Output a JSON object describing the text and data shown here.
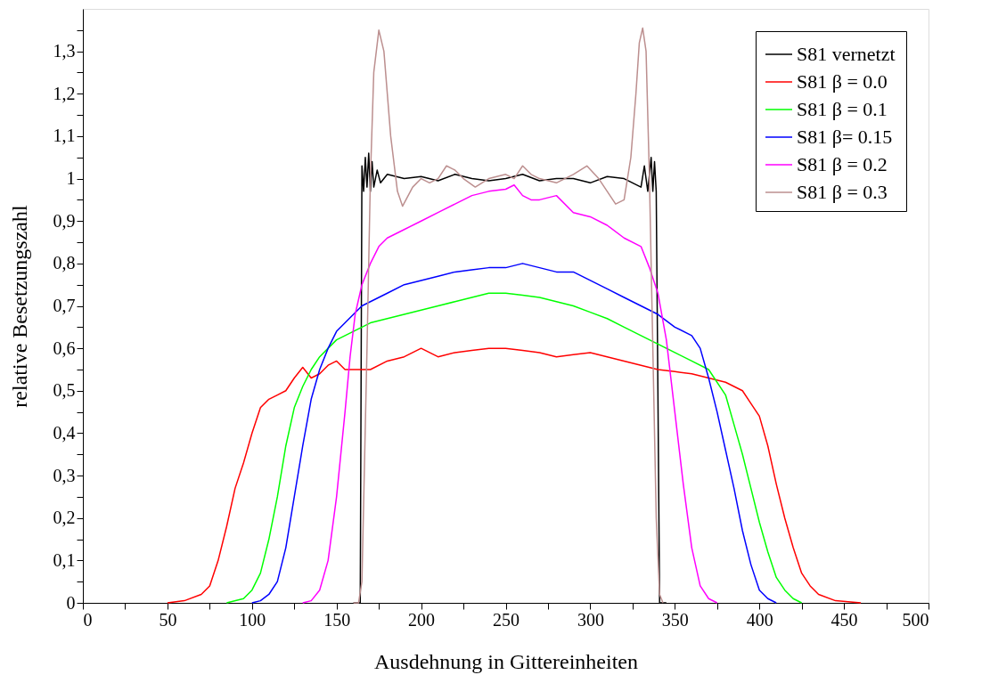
{
  "chart_data": {
    "type": "line",
    "xlabel": "Ausdehnung in Gittereinheiten",
    "ylabel": "relative Besetzungszahl",
    "xlim": [
      0,
      500
    ],
    "ylim": [
      0,
      1.4
    ],
    "xticks": [
      0,
      {
        "value": 25,
        "label": null
      },
      50,
      {
        "value": 75,
        "label": null
      },
      100,
      {
        "value": 125,
        "label": null
      },
      150,
      {
        "value": 175,
        "label": null
      },
      200,
      {
        "value": 225,
        "label": null
      },
      250,
      {
        "value": 275,
        "label": null
      },
      300,
      {
        "value": 325,
        "label": null
      },
      350,
      {
        "value": 375,
        "label": null
      },
      400,
      {
        "value": 425,
        "label": null
      },
      450,
      {
        "value": 475,
        "label": null
      },
      500
    ],
    "yticks": [
      0,
      {
        "value": 0.05,
        "label": null
      },
      {
        "value": 0.1,
        "label": "0,1"
      },
      {
        "value": 0.15,
        "label": null
      },
      {
        "value": 0.2,
        "label": "0,2"
      },
      {
        "value": 0.25,
        "label": null
      },
      {
        "value": 0.3,
        "label": "0,3"
      },
      {
        "value": 0.35,
        "label": null
      },
      {
        "value": 0.4,
        "label": "0,4"
      },
      {
        "value": 0.45,
        "label": null
      },
      {
        "value": 0.5,
        "label": "0,5"
      },
      {
        "value": 0.55,
        "label": null
      },
      {
        "value": 0.6,
        "label": "0,6"
      },
      {
        "value": 0.65,
        "label": null
      },
      {
        "value": 0.7,
        "label": "0,7"
      },
      {
        "value": 0.75,
        "label": null
      },
      {
        "value": 0.8,
        "label": "0,8"
      },
      {
        "value": 0.85,
        "label": null
      },
      {
        "value": 0.9,
        "label": "0,9"
      },
      {
        "value": 0.95,
        "label": null
      },
      1,
      {
        "value": 1.05,
        "label": null
      },
      {
        "value": 1.1,
        "label": "1,1"
      },
      {
        "value": 1.15,
        "label": null
      },
      {
        "value": 1.2,
        "label": "1,2"
      },
      {
        "value": 1.25,
        "label": null
      },
      {
        "value": 1.3,
        "label": "1,3"
      },
      {
        "value": 1.35,
        "label": null
      }
    ],
    "grid": false,
    "legend": "top right",
    "marker": "none",
    "line_style": "solid",
    "series": [
      {
        "name": "S81 vernetzt",
        "color": "#000000",
        "type": "line",
        "x": [
          160,
          164,
          165,
          166,
          167,
          168,
          169,
          170,
          171,
          172,
          174,
          176,
          180,
          190,
          200,
          210,
          220,
          230,
          240,
          250,
          260,
          270,
          280,
          290,
          300,
          310,
          320,
          330,
          332,
          334,
          336,
          337,
          338,
          339,
          340,
          341,
          345
        ],
        "values": [
          0,
          0,
          1.03,
          0.97,
          1.05,
          0.98,
          1.06,
          0.97,
          1.04,
          0.98,
          1.02,
          0.99,
          1.01,
          1.0,
          1.005,
          0.995,
          1.01,
          1.0,
          0.995,
          1.0,
          1.01,
          0.995,
          1.0,
          1.0,
          0.99,
          1.005,
          1.0,
          0.98,
          1.03,
          0.97,
          1.05,
          0.97,
          1.04,
          0.97,
          0.5,
          0,
          0
        ]
      },
      {
        "name": "S81  β = 0.0",
        "color": "#ff0000",
        "type": "line",
        "x": [
          50,
          60,
          70,
          75,
          80,
          85,
          90,
          95,
          100,
          105,
          110,
          115,
          120,
          125,
          130,
          135,
          140,
          145,
          150,
          155,
          160,
          170,
          180,
          190,
          200,
          210,
          220,
          230,
          240,
          250,
          260,
          270,
          280,
          290,
          300,
          310,
          320,
          330,
          340,
          350,
          360,
          370,
          380,
          390,
          395,
          400,
          405,
          410,
          415,
          420,
          425,
          430,
          435,
          445,
          460
        ],
        "values": [
          0,
          0.005,
          0.02,
          0.04,
          0.1,
          0.18,
          0.27,
          0.33,
          0.4,
          0.46,
          0.48,
          0.49,
          0.5,
          0.53,
          0.555,
          0.53,
          0.54,
          0.56,
          0.57,
          0.55,
          0.55,
          0.55,
          0.57,
          0.58,
          0.6,
          0.58,
          0.59,
          0.595,
          0.6,
          0.6,
          0.595,
          0.59,
          0.58,
          0.585,
          0.59,
          0.58,
          0.57,
          0.56,
          0.55,
          0.545,
          0.54,
          0.53,
          0.52,
          0.5,
          0.47,
          0.44,
          0.37,
          0.28,
          0.2,
          0.13,
          0.07,
          0.04,
          0.02,
          0.005,
          0
        ]
      },
      {
        "name": "S81  β = 0.1",
        "color": "#00ff00",
        "type": "line",
        "x": [
          85,
          95,
          100,
          105,
          110,
          115,
          120,
          125,
          130,
          135,
          140,
          145,
          150,
          160,
          170,
          180,
          190,
          200,
          210,
          220,
          230,
          240,
          250,
          260,
          270,
          280,
          290,
          300,
          310,
          320,
          330,
          340,
          350,
          360,
          370,
          380,
          385,
          390,
          395,
          400,
          405,
          410,
          415,
          420,
          425
        ],
        "values": [
          0,
          0.01,
          0.03,
          0.07,
          0.15,
          0.25,
          0.37,
          0.46,
          0.51,
          0.55,
          0.58,
          0.6,
          0.62,
          0.64,
          0.66,
          0.67,
          0.68,
          0.69,
          0.7,
          0.71,
          0.72,
          0.73,
          0.73,
          0.725,
          0.72,
          0.71,
          0.7,
          0.685,
          0.67,
          0.65,
          0.63,
          0.61,
          0.59,
          0.57,
          0.55,
          0.49,
          0.42,
          0.35,
          0.27,
          0.19,
          0.12,
          0.06,
          0.03,
          0.01,
          0
        ]
      },
      {
        "name": "S81  β= 0.15",
        "color": "#0000ff",
        "type": "line",
        "x": [
          100,
          105,
          110,
          115,
          120,
          125,
          130,
          135,
          140,
          145,
          150,
          155,
          160,
          165,
          170,
          180,
          190,
          200,
          210,
          220,
          230,
          240,
          250,
          260,
          270,
          280,
          290,
          300,
          310,
          320,
          330,
          340,
          350,
          360,
          365,
          370,
          375,
          380,
          385,
          390,
          395,
          400,
          405,
          410
        ],
        "values": [
          0,
          0.005,
          0.02,
          0.05,
          0.13,
          0.25,
          0.37,
          0.48,
          0.55,
          0.6,
          0.64,
          0.66,
          0.68,
          0.7,
          0.71,
          0.73,
          0.75,
          0.76,
          0.77,
          0.78,
          0.785,
          0.79,
          0.79,
          0.8,
          0.79,
          0.78,
          0.78,
          0.76,
          0.74,
          0.72,
          0.7,
          0.68,
          0.65,
          0.63,
          0.6,
          0.53,
          0.45,
          0.36,
          0.27,
          0.17,
          0.09,
          0.03,
          0.01,
          0
        ]
      },
      {
        "name": "S81  β = 0.2",
        "color": "#ff00ff",
        "type": "line",
        "x": [
          130,
          135,
          140,
          145,
          150,
          155,
          158,
          161,
          165,
          170,
          175,
          180,
          185,
          190,
          200,
          210,
          220,
          230,
          240,
          250,
          255,
          260,
          265,
          270,
          280,
          290,
          300,
          310,
          320,
          330,
          335,
          340,
          345,
          350,
          355,
          360,
          365,
          370,
          375
        ],
        "values": [
          0,
          0.005,
          0.03,
          0.1,
          0.25,
          0.45,
          0.58,
          0.68,
          0.75,
          0.8,
          0.84,
          0.86,
          0.87,
          0.88,
          0.9,
          0.92,
          0.94,
          0.96,
          0.97,
          0.975,
          0.985,
          0.96,
          0.95,
          0.95,
          0.96,
          0.92,
          0.91,
          0.89,
          0.86,
          0.84,
          0.79,
          0.73,
          0.62,
          0.45,
          0.28,
          0.13,
          0.04,
          0.01,
          0
        ]
      },
      {
        "name": "S81  β = 0.3",
        "color": "#bc8f8f",
        "type": "line",
        "x": [
          160,
          163,
          165,
          168,
          170,
          172,
          175,
          178,
          182,
          186,
          189,
          195,
          200,
          205,
          210,
          215,
          220,
          225,
          232,
          240,
          250,
          255,
          260,
          265,
          270,
          280,
          290,
          298,
          305,
          310,
          315,
          320,
          324,
          327,
          329,
          331,
          333,
          335,
          337,
          339,
          341,
          343
        ],
        "values": [
          0,
          0,
          0.05,
          0.6,
          1.0,
          1.25,
          1.35,
          1.3,
          1.1,
          0.97,
          0.935,
          0.98,
          1.0,
          0.99,
          1.0,
          1.03,
          1.02,
          1.0,
          0.98,
          1.0,
          1.01,
          1.0,
          1.03,
          1.01,
          1.0,
          0.99,
          1.01,
          1.03,
          1.0,
          0.97,
          0.94,
          0.95,
          1.05,
          1.2,
          1.32,
          1.355,
          1.3,
          1.0,
          0.6,
          0.2,
          0.02,
          0
        ]
      }
    ]
  }
}
